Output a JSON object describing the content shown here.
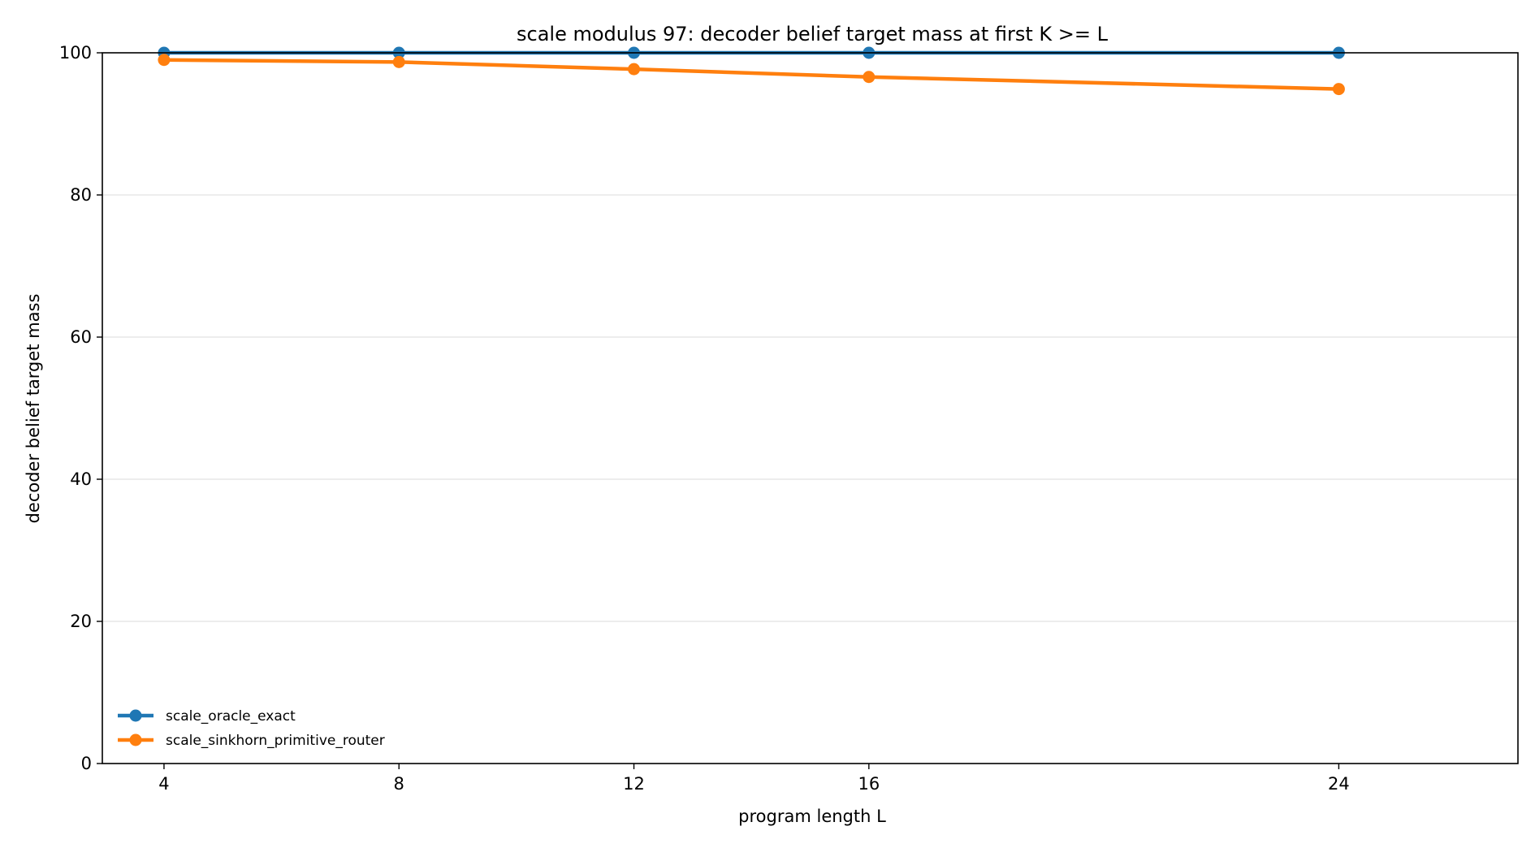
{
  "chart_data": {
    "type": "line",
    "title": "scale modulus 97: decoder belief target mass at first K >= L",
    "xlabel": "program length L",
    "ylabel": "decoder belief target mass",
    "x": [
      4,
      8,
      12,
      16,
      24
    ],
    "xticks": [
      "4",
      "8",
      "12",
      "16",
      "24"
    ],
    "xlim": [
      2.95,
      27.05
    ],
    "ylim": [
      0,
      100
    ],
    "yticks": [
      "0",
      "20",
      "40",
      "60",
      "80",
      "100"
    ],
    "grid": "horizontal",
    "legend_position": "lower-left",
    "series": [
      {
        "name": "scale_oracle_exact",
        "color": "#1f77b4",
        "values": [
          100,
          100,
          100,
          100,
          100
        ]
      },
      {
        "name": "scale_sinkhorn_primitive_router",
        "color": "#ff7f0e",
        "values": [
          99.0,
          98.7,
          97.7,
          96.6,
          94.9
        ]
      }
    ]
  }
}
